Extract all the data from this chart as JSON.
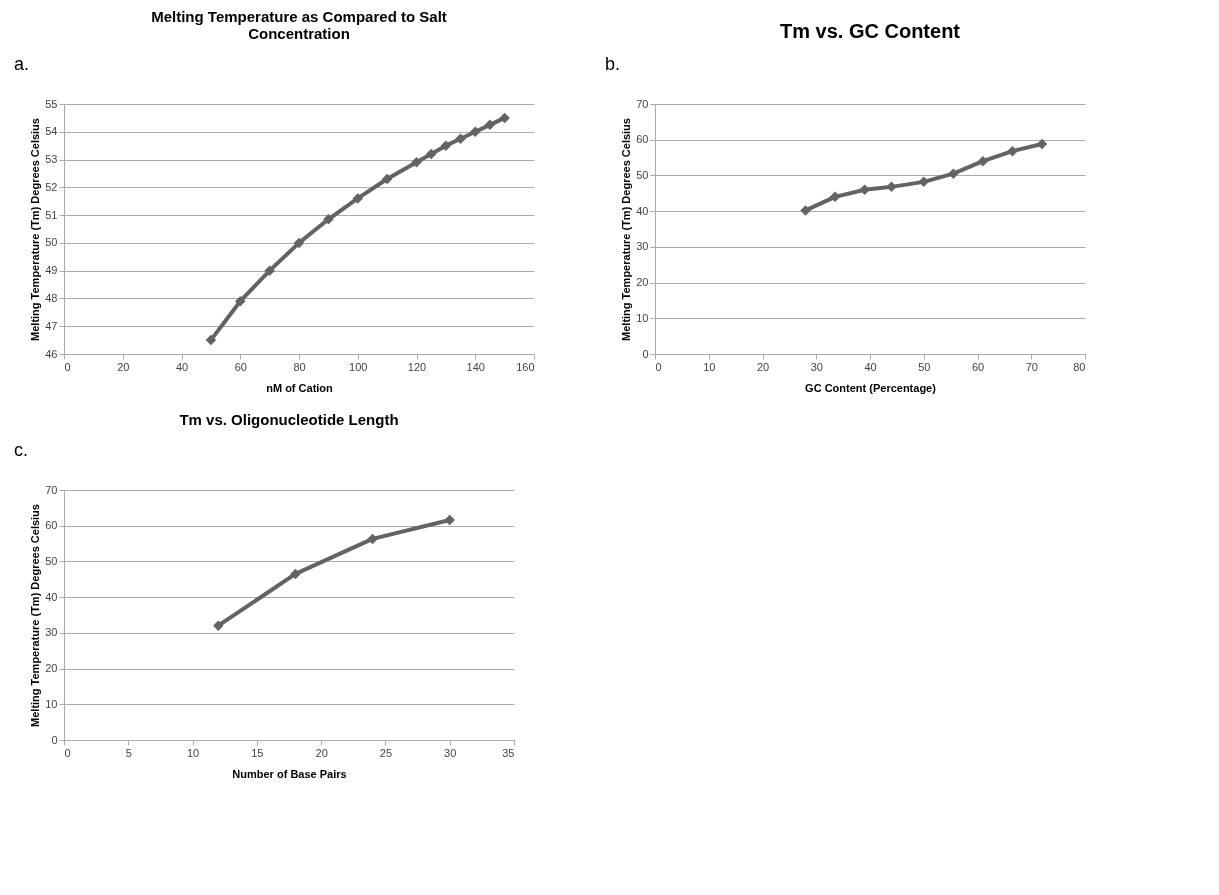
{
  "chart_data": [
    {
      "type": "line",
      "title": [
        "Melting Temperature as Compared to Salt",
        "Concentration"
      ],
      "xlabel": "nM of Cation",
      "ylabel": "Melting Temperature (Tm) Degrees Celsius",
      "annotations": [
        "a."
      ],
      "x": [
        50,
        60,
        70,
        80,
        90,
        100,
        110,
        120,
        125,
        130,
        135,
        140,
        145,
        150
      ],
      "series": [
        {
          "color": "#636363",
          "values": [
            46.5,
            47.9,
            49.0,
            50.0,
            50.85,
            51.6,
            52.3,
            52.9,
            53.2,
            53.5,
            53.75,
            54.0,
            54.25,
            54.5
          ]
        }
      ],
      "xlim": [
        0,
        160
      ],
      "xticks": [
        0,
        20,
        40,
        60,
        80,
        100,
        120,
        140,
        160
      ],
      "ylim": [
        46,
        55
      ],
      "yticks": [
        46,
        47,
        48,
        49,
        50,
        51,
        52,
        53,
        54,
        55
      ],
      "grid": "y",
      "marker": "diamond",
      "line_style": "solid"
    },
    {
      "type": "line",
      "title": "Tm vs. GC Content",
      "xlabel": "GC Content (Percentage)",
      "ylabel": "Melting Temperature (Tm) Degrees Celsius",
      "annotations": [
        "b."
      ],
      "x": [
        28,
        33.5,
        39,
        44,
        50,
        55.5,
        61,
        66.5,
        72
      ],
      "series": [
        {
          "color": "#636363",
          "values": [
            40.2,
            44,
            46,
            46.8,
            48.2,
            50.5,
            54,
            56.8,
            58.8
          ]
        }
      ],
      "xlim": [
        0,
        80
      ],
      "xticks": [
        0,
        10,
        20,
        30,
        40,
        50,
        60,
        70,
        80
      ],
      "ylim": [
        0,
        70
      ],
      "yticks": [
        0,
        10,
        20,
        30,
        40,
        50,
        60,
        70
      ],
      "grid": "y",
      "marker": "diamond",
      "line_style": "solid"
    },
    {
      "type": "line",
      "title": "Tm vs. Oligonucleotide Length",
      "xlabel": "Number of Base Pairs",
      "ylabel": "Melting Temperature (Tm)  Degrees Celsius",
      "annotations": [
        "c."
      ],
      "x": [
        12,
        18,
        24,
        30
      ],
      "series": [
        {
          "color": "#636363",
          "values": [
            32,
            46.5,
            56.3,
            61.6
          ]
        }
      ],
      "xlim": [
        0,
        35
      ],
      "xticks": [
        0,
        5,
        10,
        15,
        20,
        25,
        30,
        35
      ],
      "ylim": [
        0,
        70
      ],
      "yticks": [
        0,
        10,
        20,
        30,
        40,
        50,
        60,
        70
      ],
      "grid": "y",
      "marker": "diamond",
      "line_style": "solid"
    }
  ]
}
